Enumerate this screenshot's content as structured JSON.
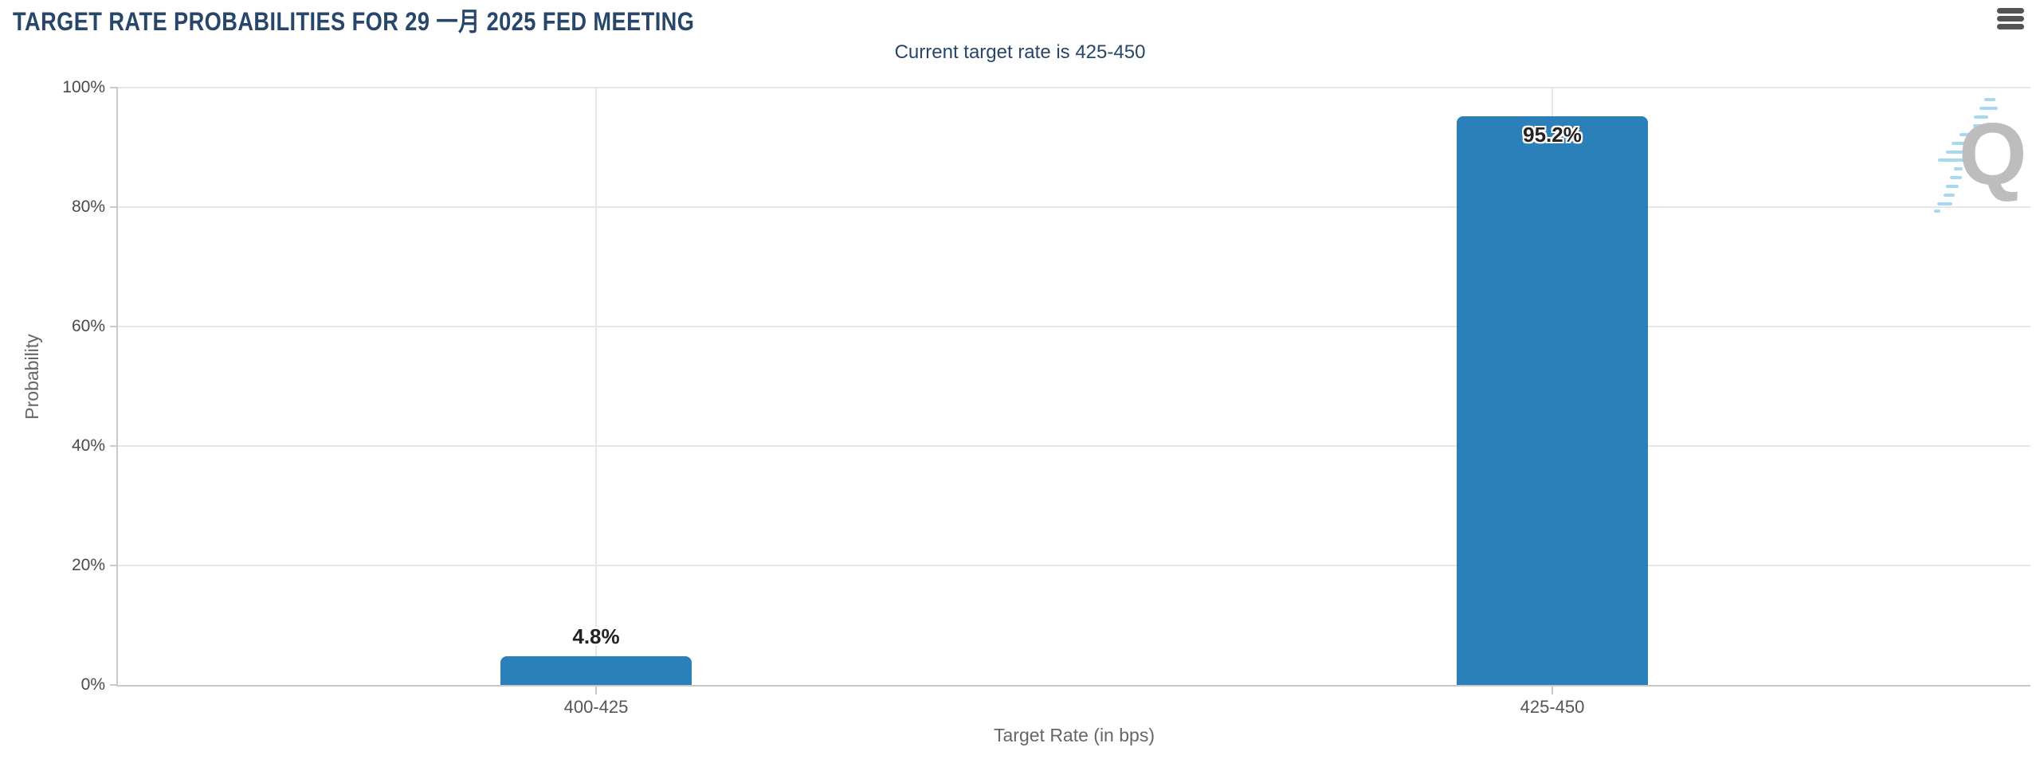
{
  "header": {
    "menu_icon": "hamburger-menu-icon"
  },
  "watermark": {
    "icon": "quikstrike-q-logo",
    "letter": "Q"
  },
  "chart_data": {
    "type": "bar",
    "title": "TARGET RATE PROBABILITIES FOR 29 一月 2025 FED MEETING",
    "subtitle": "Current target rate is 425-450",
    "categories": [
      "400-425",
      "425-450"
    ],
    "values": [
      4.8,
      95.2
    ],
    "value_labels": [
      "4.8%",
      "95.2%"
    ],
    "xlabel": "Target Rate (in bps)",
    "ylabel": "Probability",
    "ylim": [
      0,
      100
    ],
    "yticks": [
      0,
      20,
      40,
      60,
      80,
      100
    ],
    "ytick_labels": [
      "0%",
      "20%",
      "40%",
      "60%",
      "80%",
      "100%"
    ],
    "grid": true,
    "legend": "none",
    "colors": {
      "bar": "#2b80b9",
      "title_text": "#28466a",
      "axis_text": "#666666",
      "tick_text": "#4a4a4a",
      "category_text": "#555555",
      "gridline": "#e6e6e6",
      "axis_line": "#c9c9c9",
      "menu_icon": "#545454",
      "watermark_q": "#bdbdbd",
      "watermark_dash": "#a5d9ef",
      "datalabel_text": "#222222"
    }
  }
}
